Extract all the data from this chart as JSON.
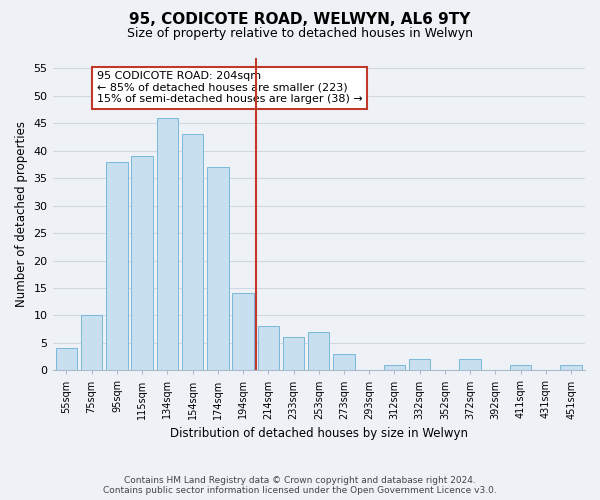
{
  "title": "95, CODICOTE ROAD, WELWYN, AL6 9TY",
  "subtitle": "Size of property relative to detached houses in Welwyn",
  "xlabel": "Distribution of detached houses by size in Welwyn",
  "ylabel": "Number of detached properties",
  "bar_labels": [
    "55sqm",
    "75sqm",
    "95sqm",
    "115sqm",
    "134sqm",
    "154sqm",
    "174sqm",
    "194sqm",
    "214sqm",
    "233sqm",
    "253sqm",
    "273sqm",
    "293sqm",
    "312sqm",
    "332sqm",
    "352sqm",
    "372sqm",
    "392sqm",
    "411sqm",
    "431sqm",
    "451sqm"
  ],
  "bar_values": [
    4,
    10,
    38,
    39,
    46,
    43,
    37,
    14,
    8,
    6,
    7,
    3,
    0,
    1,
    2,
    0,
    2,
    0,
    1,
    0,
    1
  ],
  "bar_color": "#c8dff0",
  "bar_edge_color": "#7ab8d9",
  "vline_x_index": 8,
  "vline_color": "#c0392b",
  "annotation_title": "95 CODICOTE ROAD: 204sqm",
  "annotation_line1": "← 85% of detached houses are smaller (223)",
  "annotation_line2": "15% of semi-detached houses are larger (38) →",
  "annotation_box_color": "#ffffff",
  "annotation_box_edge": "#c0392b",
  "ylim": [
    0,
    57
  ],
  "yticks": [
    0,
    5,
    10,
    15,
    20,
    25,
    30,
    35,
    40,
    45,
    50,
    55
  ],
  "footer_line1": "Contains HM Land Registry data © Crown copyright and database right 2024.",
  "footer_line2": "Contains public sector information licensed under the Open Government Licence v3.0.",
  "bg_color": "#eef2f7",
  "grid_color": "#d0d8e4"
}
